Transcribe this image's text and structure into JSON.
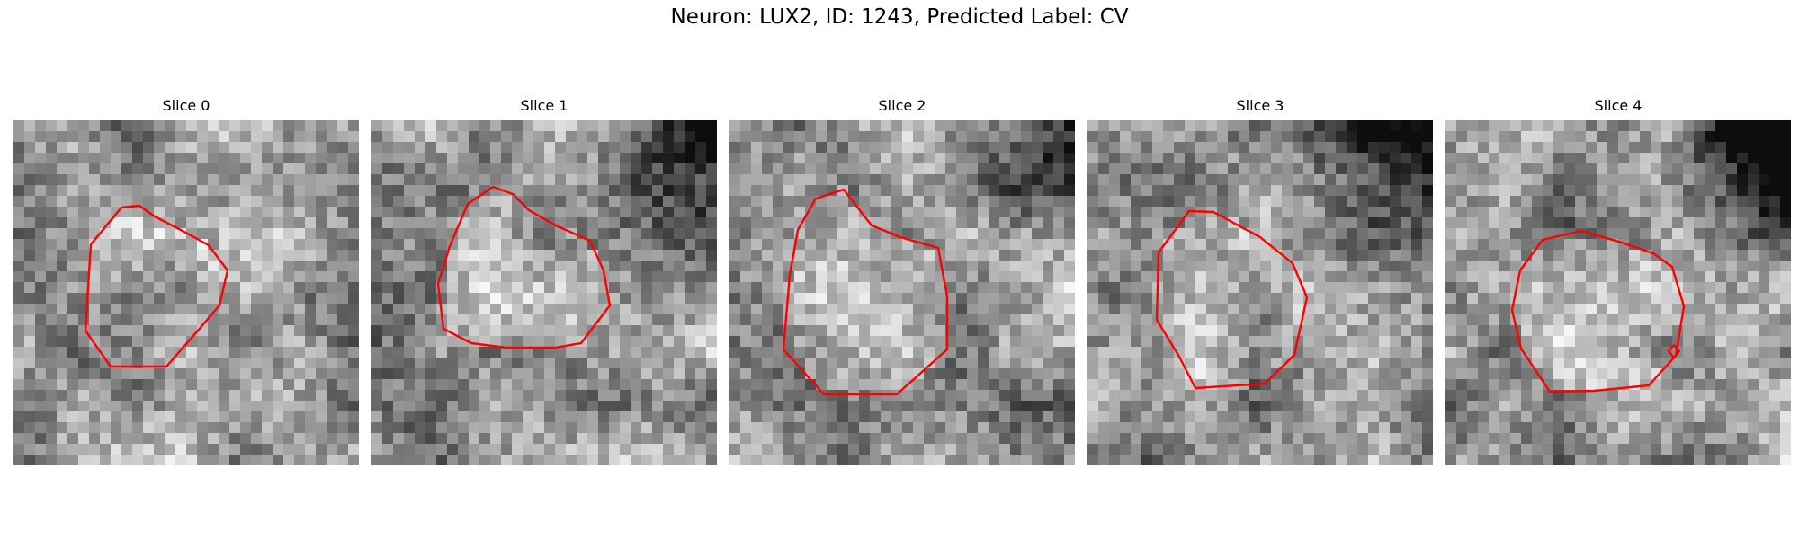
{
  "figure": {
    "title": "Neuron: LUX2, ID: 1243, Predicted Label: CV"
  },
  "colors": {
    "background": "#ffffff",
    "contour": "#ff0000",
    "text": "#000000",
    "colormap": "grayscale"
  },
  "panels": [
    {
      "title": "Slice 0"
    },
    {
      "title": "Slice 1"
    },
    {
      "title": "Slice 2"
    },
    {
      "title": "Slice 3"
    },
    {
      "title": "Slice 4"
    }
  ]
}
